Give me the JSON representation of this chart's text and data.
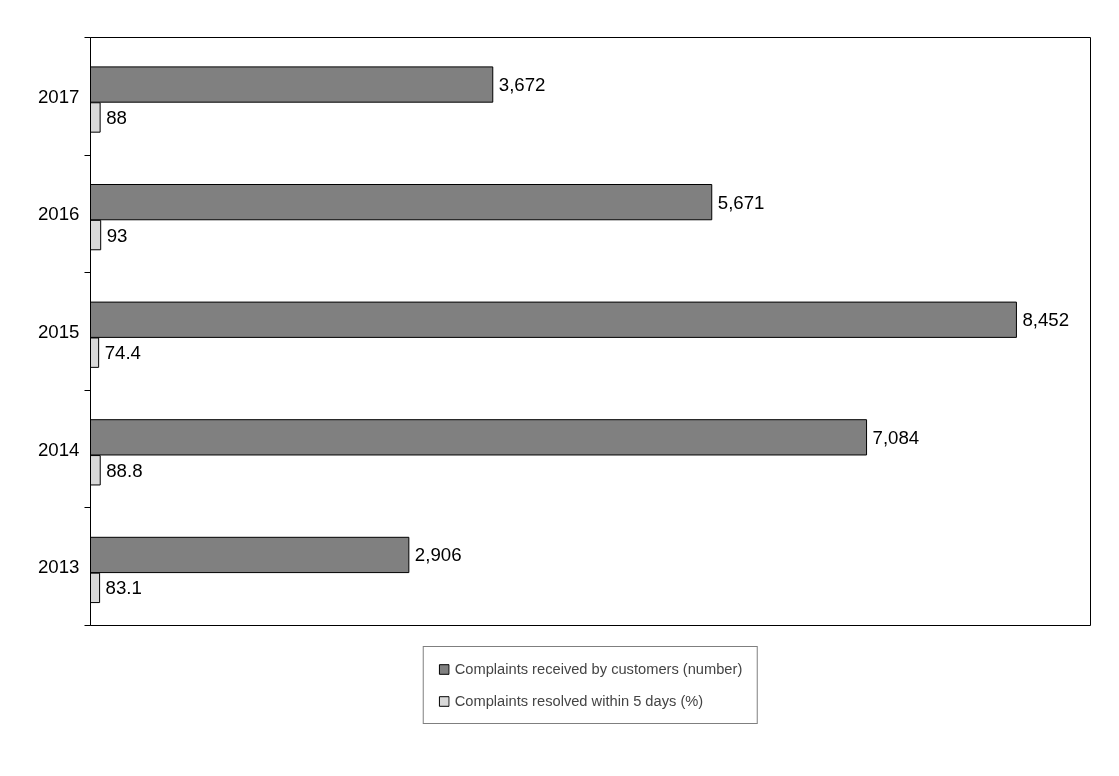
{
  "chart_data": {
    "type": "bar",
    "orientation": "horizontal",
    "categories": [
      "2017",
      "2016",
      "2015",
      "2014",
      "2013"
    ],
    "series": [
      {
        "name": "Complaints received by customers (number)",
        "color": "#808080",
        "values": [
          3672,
          5671,
          8452,
          7084,
          2906
        ],
        "value_labels": [
          "3,672",
          "5,671",
          "8,452",
          "7,084",
          "2,906"
        ]
      },
      {
        "name": "Complaints resolved within 5 days (%)",
        "color": "#d9d9d9",
        "values": [
          88,
          93,
          74.4,
          88.8,
          83.1
        ],
        "value_labels": [
          "88",
          "93",
          "74.4",
          "88.8",
          "83.1"
        ]
      }
    ],
    "legend": "bottom",
    "grid": false
  }
}
